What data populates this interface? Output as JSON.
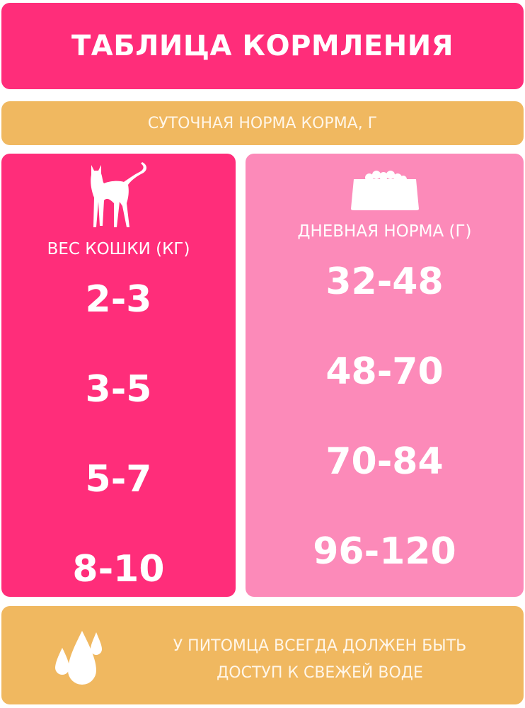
{
  "title": "ТАБЛИЦА КОРМЛЕНИЯ",
  "subtitle": "СУТОЧНАЯ НОРМА КОРМА, Г",
  "table": {
    "weight_header": "ВЕС КОШКИ (КГ)",
    "norm_header": "ДНЕВНАЯ НОРМА (Г)",
    "weights": [
      "2-3",
      "3-5",
      "5-7",
      "8-10"
    ],
    "norms": [
      "32-48",
      "48-70",
      "70-84",
      "96-120"
    ]
  },
  "note": "У ПИТОМЦА ВСЕГДА ДОЛЖЕН БЫТЬ ДОСТУП К СВЕЖЕЙ ВОДЕ",
  "icons": {
    "weight": "cat-icon",
    "norm": "food-bowl-icon",
    "note": "water-drops-icon"
  },
  "colors": {
    "pink": "#ff2d7a",
    "light_pink": "#fc8ab9",
    "orange": "#f0b860"
  }
}
